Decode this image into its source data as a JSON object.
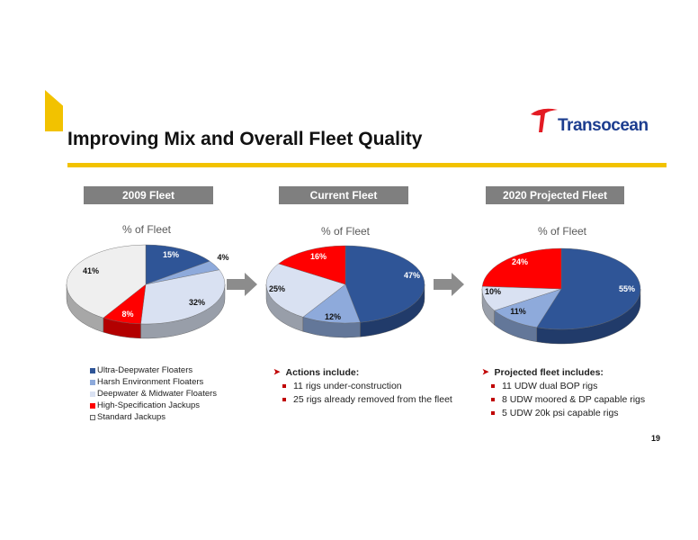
{
  "title": "Improving Mix and Overall Fleet Quality",
  "logo": {
    "name": "Transocean"
  },
  "page_number": "19",
  "colors": {
    "accent": "#f2c200",
    "ultra": "#2f5597",
    "harsh": "#8eaadb",
    "deep": "#d9e1f2",
    "high": "#ff0000",
    "standard": "#efefef",
    "header_bg": "#7f7f7f",
    "bullet_marker": "#c00000"
  },
  "chart_data": [
    {
      "type": "pie",
      "title": "2009 Fleet",
      "subtitle": "% of Fleet",
      "categories": [
        "Ultra-Deepwater Floaters",
        "Harsh Environment Floaters",
        "Deepwater & Midwater Floaters",
        "High-Specification Jackups",
        "Standard Jackups"
      ],
      "values": [
        15,
        4,
        32,
        8,
        41
      ],
      "labels": [
        "15%",
        "4%",
        "32%",
        "8%",
        "41%"
      ]
    },
    {
      "type": "pie",
      "title": "Current Fleet",
      "subtitle": "% of Fleet",
      "categories": [
        "Ultra-Deepwater Floaters",
        "Harsh Environment Floaters",
        "Deepwater & Midwater Floaters",
        "High-Specification Jackups"
      ],
      "values": [
        47,
        12,
        25,
        16
      ],
      "labels": [
        "47%",
        "12%",
        "25%",
        "16%"
      ]
    },
    {
      "type": "pie",
      "title": "2020 Projected Fleet",
      "subtitle": "% of Fleet",
      "categories": [
        "Ultra-Deepwater Floaters",
        "Harsh Environment Floaters",
        "Deepwater & Midwater Floaters",
        "High-Specification Jackups"
      ],
      "values": [
        55,
        11,
        10,
        24
      ],
      "labels": [
        "55%",
        "11%",
        "10%",
        "24%"
      ]
    }
  ],
  "legend": [
    {
      "label": "Ultra-Deepwater Floaters",
      "color": "#2f5597"
    },
    {
      "label": "Harsh Environment Floaters",
      "color": "#8eaadb"
    },
    {
      "label": "Deepwater & Midwater Floaters",
      "color": "#d9e1f2"
    },
    {
      "label": "High-Specification Jackups",
      "color": "#ff0000"
    },
    {
      "label": "Standard Jackups",
      "color": "#efefef"
    }
  ],
  "actions": {
    "heading": "Actions include:",
    "items": [
      "11 rigs under-construction",
      "25 rigs already removed from the fleet"
    ]
  },
  "projected": {
    "heading": "Projected fleet includes:",
    "items": [
      "11 UDW dual BOP rigs",
      "8 UDW moored & DP capable rigs",
      "5 UDW 20k psi capable rigs"
    ]
  }
}
